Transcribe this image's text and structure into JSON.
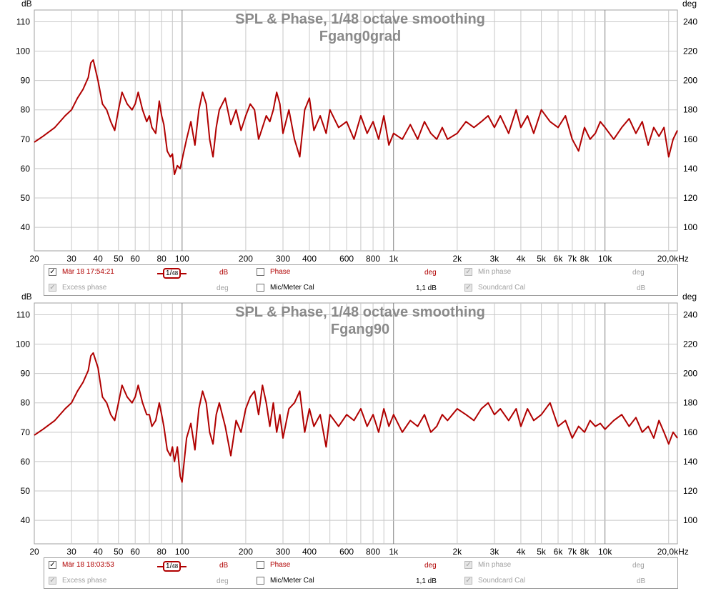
{
  "colors": {
    "curve": "#b00000",
    "grid": "#c8c8c8",
    "grid_major": "#808080",
    "frame": "#a0a0a0"
  },
  "chart_data": [
    {
      "type": "line",
      "title": "SPL & Phase, 1/48 octave smoothing",
      "subtitle": "Fgang0grad",
      "xscale": "log",
      "xlim": [
        20,
        22000
      ],
      "ylim": [
        32,
        114
      ],
      "y2lim": [
        84,
        248
      ],
      "ylabel": "dB",
      "y2label": "deg",
      "x_ticks": [
        20,
        30,
        40,
        50,
        60,
        80,
        100,
        200,
        300,
        400,
        600,
        800,
        1000,
        2000,
        3000,
        4000,
        5000,
        6000,
        7000,
        8000,
        10000,
        20000
      ],
      "x_tick_labels": [
        "20",
        "30",
        "40",
        "50",
        "60",
        "80",
        "100",
        "200",
        "300",
        "400",
        "600",
        "800",
        "1k",
        "2k",
        "3k",
        "4k",
        "5k",
        "6k",
        "7k",
        "8k",
        "10k",
        "20,0kHz"
      ],
      "y_ticks": [
        40,
        50,
        60,
        70,
        80,
        90,
        100,
        110
      ],
      "y_tick_labels": [
        "40",
        "50",
        "60",
        "70",
        "80",
        "90",
        "100",
        "110"
      ],
      "y2_ticks": [
        100,
        120,
        140,
        160,
        180,
        200,
        220,
        240
      ],
      "y2_tick_labels": [
        "100",
        "120",
        "140",
        "160",
        "180",
        "200",
        "220",
        "240"
      ],
      "series": [
        {
          "x": [
            20,
            22,
            25,
            28,
            30,
            32,
            34,
            36,
            37,
            38,
            40,
            42,
            44,
            46,
            48,
            50,
            52,
            55,
            58,
            60,
            62,
            65,
            68,
            70,
            72,
            75,
            78,
            80,
            82,
            85,
            88,
            90,
            92,
            95,
            98,
            100,
            105,
            110,
            115,
            120,
            125,
            130,
            135,
            140,
            145,
            150,
            160,
            170,
            180,
            190,
            200,
            210,
            220,
            230,
            240,
            250,
            260,
            270,
            280,
            290,
            300,
            320,
            340,
            360,
            380,
            400,
            420,
            450,
            480,
            500,
            550,
            600,
            650,
            700,
            750,
            800,
            850,
            900,
            950,
            1000,
            1100,
            1200,
            1300,
            1400,
            1500,
            1600,
            1700,
            1800,
            2000,
            2200,
            2400,
            2600,
            2800,
            3000,
            3200,
            3500,
            3800,
            4000,
            4300,
            4600,
            5000,
            5500,
            6000,
            6500,
            7000,
            7500,
            8000,
            8500,
            9000,
            9500,
            10000,
            11000,
            12000,
            13000,
            14000,
            15000,
            16000,
            17000,
            18000,
            19000,
            20000,
            21000,
            22000
          ],
          "y": [
            69,
            71,
            74,
            78,
            80,
            84,
            87,
            91,
            96,
            97,
            90,
            82,
            80,
            76,
            73,
            80,
            86,
            82,
            80,
            82,
            86,
            80,
            76,
            78,
            74,
            72,
            83,
            78,
            75,
            66,
            64,
            65,
            58,
            61,
            60,
            63,
            70,
            76,
            68,
            80,
            86,
            82,
            70,
            64,
            74,
            80,
            84,
            75,
            80,
            73,
            78,
            82,
            80,
            70,
            74,
            78,
            76,
            80,
            86,
            82,
            72,
            80,
            70,
            64,
            80,
            84,
            73,
            78,
            72,
            80,
            74,
            76,
            70,
            78,
            72,
            76,
            70,
            78,
            68,
            72,
            70,
            75,
            70,
            76,
            72,
            70,
            74,
            70,
            72,
            76,
            74,
            76,
            78,
            74,
            78,
            72,
            80,
            74,
            78,
            72,
            80,
            76,
            74,
            78,
            70,
            66,
            74,
            70,
            72,
            76,
            74,
            70,
            74,
            77,
            72,
            76,
            68,
            74,
            71,
            74,
            64,
            70,
            73
          ]
        }
      ]
    },
    {
      "type": "line",
      "title": "SPL & Phase, 1/48 octave smoothing",
      "subtitle": "Fgang90",
      "xscale": "log",
      "xlim": [
        20,
        22000
      ],
      "ylim": [
        32,
        114
      ],
      "y2lim": [
        84,
        248
      ],
      "ylabel": "dB",
      "y2label": "deg",
      "x_ticks": [
        20,
        30,
        40,
        50,
        60,
        80,
        100,
        200,
        300,
        400,
        600,
        800,
        1000,
        2000,
        3000,
        4000,
        5000,
        6000,
        7000,
        8000,
        10000,
        20000
      ],
      "x_tick_labels": [
        "20",
        "30",
        "40",
        "50",
        "60",
        "80",
        "100",
        "200",
        "300",
        "400",
        "600",
        "800",
        "1k",
        "2k",
        "3k",
        "4k",
        "5k",
        "6k",
        "7k",
        "8k",
        "10k",
        "20,0kHz"
      ],
      "y_ticks": [
        40,
        50,
        60,
        70,
        80,
        90,
        100,
        110
      ],
      "y_tick_labels": [
        "40",
        "50",
        "60",
        "70",
        "80",
        "90",
        "100",
        "110"
      ],
      "y2_ticks": [
        100,
        120,
        140,
        160,
        180,
        200,
        220,
        240
      ],
      "y2_tick_labels": [
        "100",
        "120",
        "140",
        "160",
        "180",
        "200",
        "220",
        "240"
      ],
      "series": [
        {
          "x": [
            20,
            22,
            25,
            28,
            30,
            32,
            34,
            36,
            37,
            38,
            40,
            42,
            44,
            46,
            48,
            50,
            52,
            55,
            58,
            60,
            62,
            65,
            68,
            70,
            72,
            75,
            78,
            80,
            82,
            85,
            88,
            90,
            92,
            95,
            98,
            100,
            105,
            110,
            115,
            120,
            125,
            130,
            135,
            140,
            145,
            150,
            160,
            170,
            180,
            190,
            200,
            210,
            220,
            230,
            240,
            250,
            260,
            270,
            280,
            290,
            300,
            320,
            340,
            360,
            380,
            400,
            420,
            450,
            480,
            500,
            550,
            600,
            650,
            700,
            750,
            800,
            850,
            900,
            950,
            1000,
            1100,
            1200,
            1300,
            1400,
            1500,
            1600,
            1700,
            1800,
            2000,
            2200,
            2400,
            2600,
            2800,
            3000,
            3200,
            3500,
            3800,
            4000,
            4300,
            4600,
            5000,
            5500,
            6000,
            6500,
            7000,
            7500,
            8000,
            8500,
            9000,
            9500,
            10000,
            11000,
            12000,
            13000,
            14000,
            15000,
            16000,
            17000,
            18000,
            19000,
            20000,
            21000,
            22000
          ],
          "y": [
            69,
            71,
            74,
            78,
            80,
            84,
            87,
            91,
            96,
            97,
            92,
            82,
            80,
            76,
            74,
            80,
            86,
            82,
            80,
            82,
            86,
            80,
            76,
            76,
            72,
            74,
            80,
            76,
            72,
            64,
            62,
            65,
            60,
            65,
            55,
            53,
            68,
            73,
            64,
            78,
            84,
            80,
            70,
            66,
            76,
            80,
            72,
            62,
            74,
            70,
            78,
            82,
            84,
            76,
            86,
            80,
            72,
            80,
            70,
            76,
            68,
            78,
            80,
            84,
            70,
            78,
            72,
            76,
            65,
            76,
            72,
            76,
            74,
            78,
            72,
            76,
            70,
            78,
            72,
            76,
            70,
            74,
            72,
            76,
            70,
            72,
            76,
            74,
            78,
            76,
            74,
            78,
            80,
            76,
            78,
            74,
            78,
            72,
            78,
            74,
            76,
            80,
            72,
            74,
            68,
            72,
            70,
            74,
            72,
            73,
            71,
            74,
            76,
            72,
            75,
            70,
            72,
            68,
            74,
            70,
            66,
            70,
            68
          ]
        }
      ]
    }
  ],
  "legends": [
    {
      "timestamp": "Mär 18 17:54:21",
      "smoothing_num": "1",
      "smoothing_den": "48",
      "spl_unit": "dB",
      "phase_label": "Phase",
      "phase_unit": "deg",
      "minphase_label": "Min phase",
      "minphase_unit": "deg",
      "excess_label": "Excess phase",
      "excess_unit": "deg",
      "mic_label": "Mic/Meter Cal",
      "mic_value": "1,1 dB",
      "soundcard_label": "Soundcard Cal",
      "soundcard_unit": "dB",
      "check_glyph": "✓"
    },
    {
      "timestamp": "Mär 18 18:03:53",
      "smoothing_num": "1",
      "smoothing_den": "48",
      "spl_unit": "dB",
      "phase_label": "Phase",
      "phase_unit": "deg",
      "minphase_label": "Min phase",
      "minphase_unit": "deg",
      "excess_label": "Excess phase",
      "excess_unit": "deg",
      "mic_label": "Mic/Meter Cal",
      "mic_value": "1,1 dB",
      "soundcard_label": "Soundcard Cal",
      "soundcard_unit": "dB",
      "check_glyph": "✓"
    }
  ]
}
